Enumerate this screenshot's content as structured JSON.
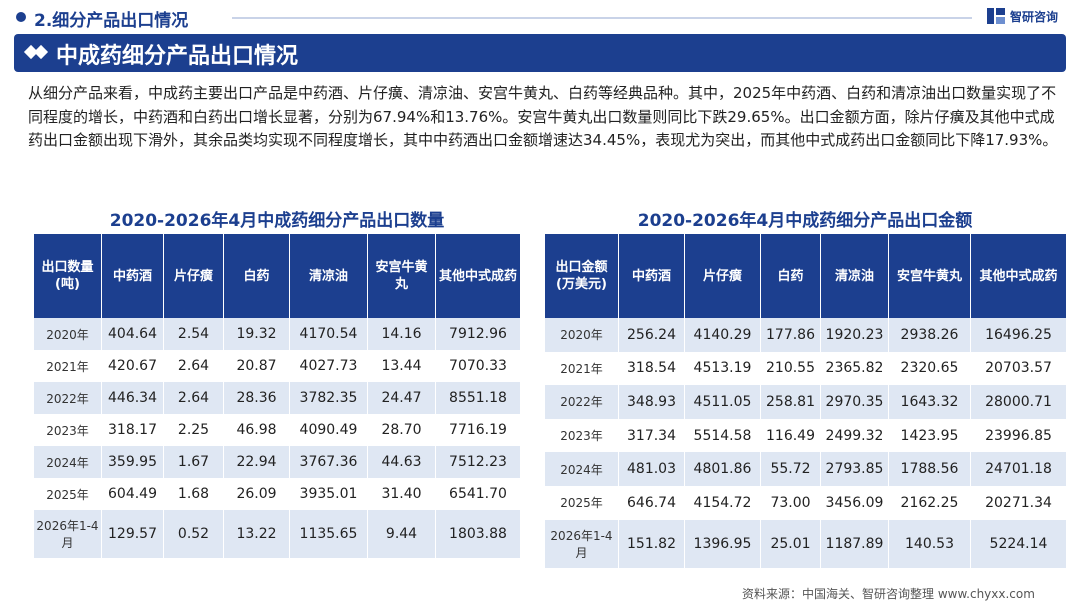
{
  "header": {
    "section": "2.细分产品出口情况",
    "brand": "智研咨询"
  },
  "banner": {
    "title": "中成药细分产品出口情况"
  },
  "paragraph": "从细分产品来看，中成药主要出口产品是中药酒、片仔癀、清凉油、安宫牛黄丸、白药等经典品种。其中，2025年中药酒、白药和清凉油出口数量实现了不同程度的增长，中药酒和白药出口增长显著，分别为67.94%和13.76%。安宫牛黄丸出口数量则同比下跌29.65%。出口金额方面，除片仔癀及其他中式成药出口金额出现下滑外，其余品类均实现不同程度增长，其中中药酒出口金额增速达34.45%，表现尤为突出，而其他中式成药出口金额同比下降17.93%。",
  "table_quantity": {
    "title": "2020-2026年4月中成药细分产品出口数量",
    "headers": [
      "出口数量(吨)",
      "中药酒",
      "片仔癀",
      "白药",
      "清凉油",
      "安宫牛黄丸",
      "其他中式成药"
    ],
    "rows": [
      [
        "2020年",
        "404.64",
        "2.54",
        "19.32",
        "4170.54",
        "14.16",
        "7912.96"
      ],
      [
        "2021年",
        "420.67",
        "2.64",
        "20.87",
        "4027.73",
        "13.44",
        "7070.33"
      ],
      [
        "2022年",
        "446.34",
        "2.64",
        "28.36",
        "3782.35",
        "24.47",
        "8551.18"
      ],
      [
        "2023年",
        "318.17",
        "2.25",
        "46.98",
        "4090.49",
        "28.70",
        "7716.19"
      ],
      [
        "2024年",
        "359.95",
        "1.67",
        "22.94",
        "3767.36",
        "44.63",
        "7512.23"
      ],
      [
        "2025年",
        "604.49",
        "1.68",
        "26.09",
        "3935.01",
        "31.40",
        "6541.70"
      ],
      [
        "2026年1-4月",
        "129.57",
        "0.52",
        "13.22",
        "1135.65",
        "9.44",
        "1803.88"
      ]
    ]
  },
  "table_value": {
    "title": "2020-2026年4月中成药细分产品出口金额",
    "headers": [
      "出口金额(万美元)",
      "中药酒",
      "片仔癀",
      "白药",
      "清凉油",
      "安宫牛黄丸",
      "其他中式成药"
    ],
    "rows": [
      [
        "2020年",
        "256.24",
        "4140.29",
        "177.86",
        "1920.23",
        "2938.26",
        "16496.25"
      ],
      [
        "2021年",
        "318.54",
        "4513.19",
        "210.55",
        "2365.82",
        "2320.65",
        "20703.57"
      ],
      [
        "2022年",
        "348.93",
        "4511.05",
        "258.81",
        "2970.35",
        "1643.32",
        "28000.71"
      ],
      [
        "2023年",
        "317.34",
        "5514.58",
        "116.49",
        "2499.32",
        "1423.95",
        "23996.85"
      ],
      [
        "2024年",
        "481.03",
        "4801.86",
        "55.72",
        "2793.85",
        "1788.56",
        "24701.18"
      ],
      [
        "2025年",
        "646.74",
        "4154.72",
        "73.00",
        "3456.09",
        "2162.25",
        "20271.34"
      ],
      [
        "2026年1-4月",
        "151.82",
        "1396.95",
        "25.01",
        "1187.89",
        "140.53",
        "5224.14"
      ]
    ]
  },
  "source": "资料来源：中国海关、智研咨询整理  www.chyxx.com",
  "colors": {
    "primary": "#1c3f8f",
    "stripe": "#dfe7f3"
  }
}
